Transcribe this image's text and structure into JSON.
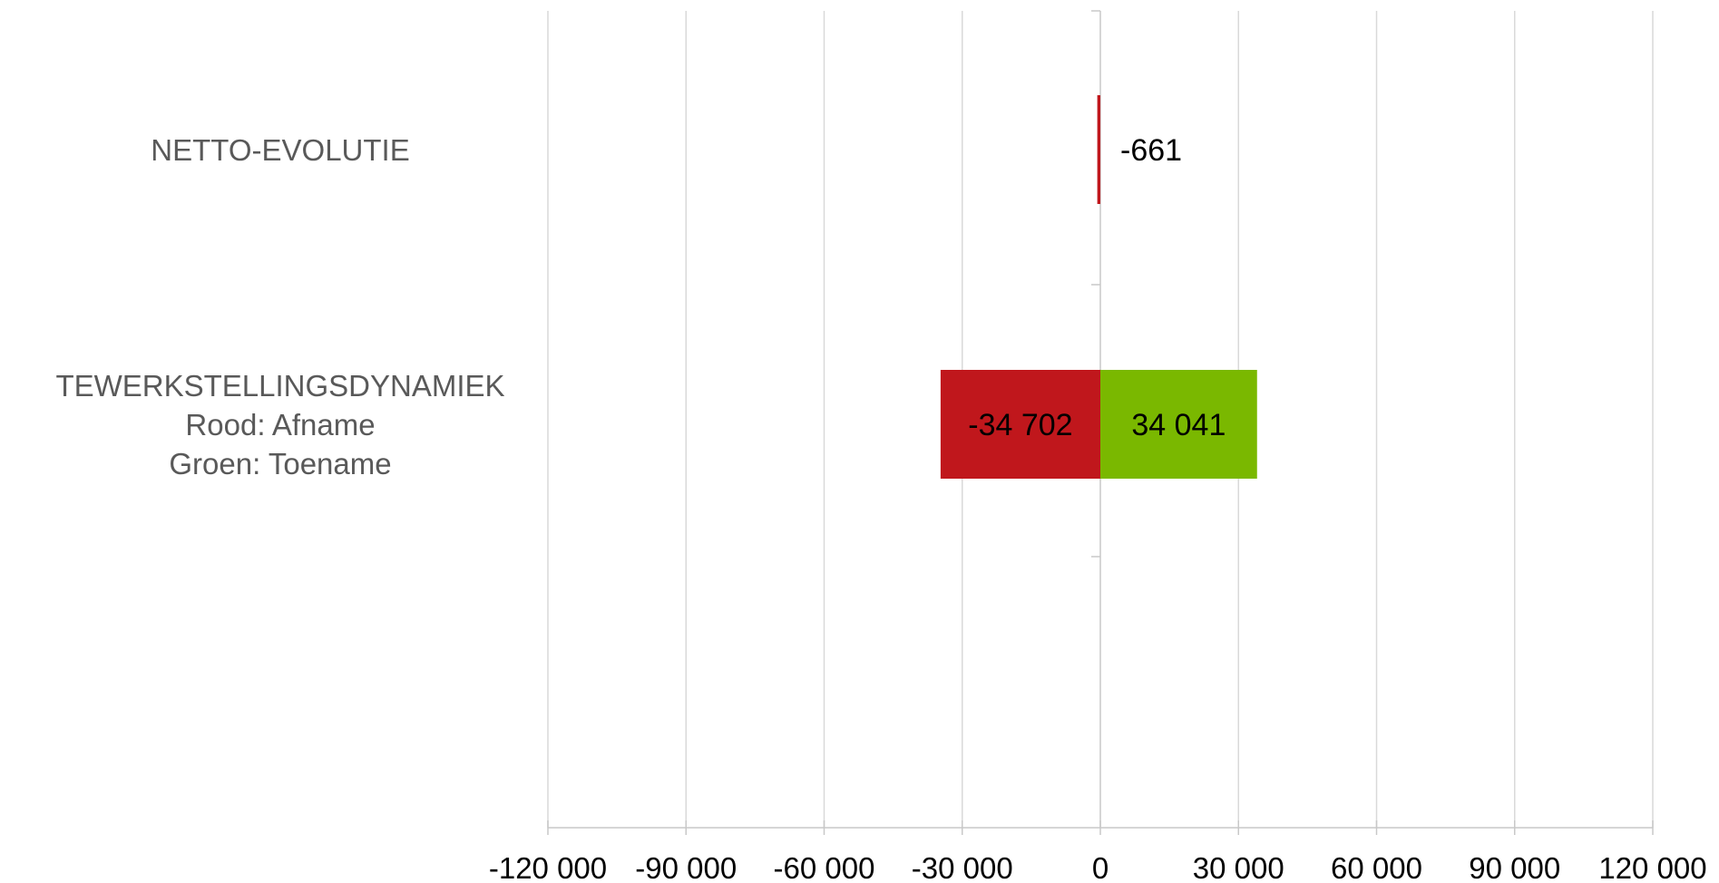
{
  "chart_data": {
    "type": "bar",
    "orientation": "horizontal",
    "title": "",
    "xlabel": "",
    "ylabel": "",
    "xlim": [
      -120000,
      120000
    ],
    "x_ticks": [
      -120000,
      -90000,
      -60000,
      -30000,
      0,
      30000,
      60000,
      90000,
      120000
    ],
    "x_tick_labels": [
      "-120 000",
      "-90 000",
      "-60 000",
      "-30 000",
      "0",
      "30 000",
      "60 000",
      "90 000",
      "120 000"
    ],
    "grid": true,
    "categories": [
      {
        "lines": [
          "NETTO-EVOLUTIE"
        ]
      },
      {
        "lines": [
          "TEWERKSTELLINGSDYNAMIEK",
          "Rood: Afname",
          "Groen: Toename"
        ]
      }
    ],
    "bars": [
      {
        "category": 0,
        "value": -661,
        "label": "-661",
        "color": "#c0171c"
      },
      {
        "category": 1,
        "value": -34702,
        "label": "-34 702",
        "color": "#c0171c"
      },
      {
        "category": 1,
        "value": 34041,
        "label": "34 041",
        "color": "#7ab800"
      }
    ]
  }
}
